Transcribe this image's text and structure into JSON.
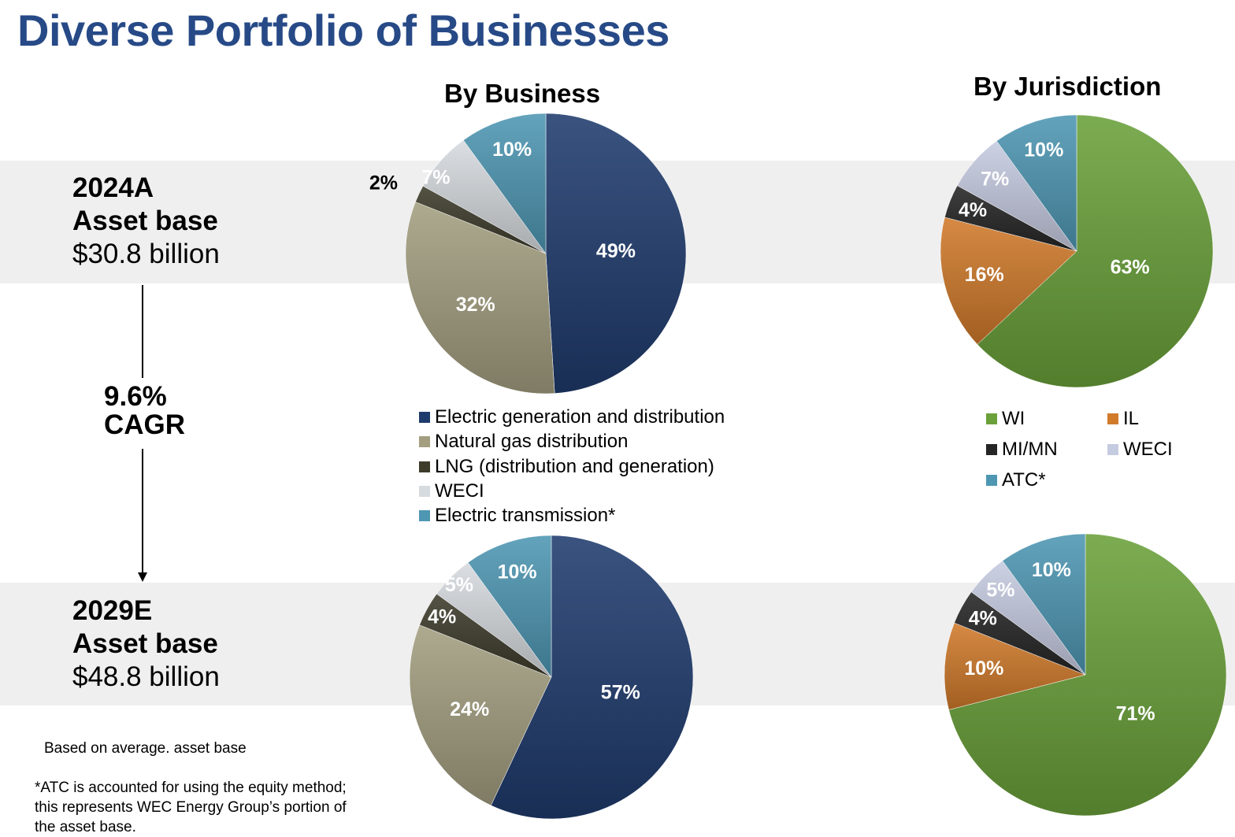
{
  "title": "Diverse Portfolio of Businesses",
  "columns": {
    "business": "By Business",
    "jurisdiction": "By Jurisdiction"
  },
  "rows": {
    "y2024": {
      "label": "2024A",
      "sub": "Asset base",
      "value": "$30.8 billion"
    },
    "y2029": {
      "label": "2029E",
      "sub": "Asset base",
      "value": "$48.8 billion"
    }
  },
  "cagr": {
    "value": "9.6%",
    "label": "CAGR"
  },
  "notes": {
    "basis": "Based on average. asset base",
    "atc_line1": "*ATC is accounted for using the equity method;",
    "atc_line2": "this represents WEC Energy Group’s portion of",
    "atc_line3": "the asset base."
  },
  "colors": {
    "title": "#274a87",
    "electric_gen": "#1f3b6d",
    "natural_gas": "#a39e80",
    "lng": "#3d3b2a",
    "weci_business": "#d6dbdf",
    "electric_transmission": "#4e97b3",
    "wi": "#6aa13a",
    "il": "#d07a2a",
    "mimn": "#252525",
    "weci_jurisdiction": "#c5cbe0",
    "atc": "#4e97b3"
  },
  "legends": {
    "business": [
      {
        "label": "Electric generation and distribution",
        "color": "#1f3b6d"
      },
      {
        "label": "Natural gas distribution",
        "color": "#a39e80"
      },
      {
        "label": "LNG (distribution and generation)",
        "color": "#3d3b2a"
      },
      {
        "label": "WECI",
        "color": "#d6dbdf"
      },
      {
        "label": "Electric transmission*",
        "color": "#4e97b3"
      }
    ],
    "jurisdiction": [
      {
        "label": "WI",
        "color": "#6aa13a"
      },
      {
        "label": "IL",
        "color": "#d07a2a"
      },
      {
        "label": "MI/MN",
        "color": "#252525"
      },
      {
        "label": "WECI",
        "color": "#c5cbe0"
      },
      {
        "label": "ATC*",
        "color": "#4e97b3"
      }
    ]
  },
  "chart_data": [
    {
      "type": "pie",
      "title": "By Business",
      "period": "2024A",
      "categories": [
        "Electric generation and distribution",
        "Natural gas distribution",
        "LNG (distribution and generation)",
        "WECI",
        "Electric transmission*"
      ],
      "values": [
        49,
        32,
        2,
        7,
        10
      ],
      "labels": [
        "49%",
        "32%",
        "2%",
        "7%",
        "10%"
      ],
      "colors": [
        "#1f3b6d",
        "#a39e80",
        "#3d3b2a",
        "#d6dbdf",
        "#4e97b3"
      ]
    },
    {
      "type": "pie",
      "title": "By Jurisdiction",
      "period": "2024A",
      "categories": [
        "WI",
        "IL",
        "MI/MN",
        "WECI",
        "ATC*"
      ],
      "values": [
        63,
        16,
        4,
        7,
        10
      ],
      "labels": [
        "63%",
        "16%",
        "4%",
        "7%",
        "10%"
      ],
      "colors": [
        "#6aa13a",
        "#d07a2a",
        "#252525",
        "#c5cbe0",
        "#4e97b3"
      ]
    },
    {
      "type": "pie",
      "title": "By Business",
      "period": "2029E",
      "categories": [
        "Electric generation and distribution",
        "Natural gas distribution",
        "LNG (distribution and generation)",
        "WECI",
        "Electric transmission*"
      ],
      "values": [
        57,
        24,
        4,
        5,
        10
      ],
      "labels": [
        "57%",
        "24%",
        "4%",
        "5%",
        "10%"
      ],
      "colors": [
        "#1f3b6d",
        "#a39e80",
        "#3d3b2a",
        "#d6dbdf",
        "#4e97b3"
      ]
    },
    {
      "type": "pie",
      "title": "By Jurisdiction",
      "period": "2029E",
      "categories": [
        "WI",
        "IL",
        "MI/MN",
        "WECI",
        "ATC*"
      ],
      "values": [
        71,
        10,
        4,
        5,
        10
      ],
      "labels": [
        "71%",
        "10%",
        "4%",
        "5%",
        "10%"
      ],
      "colors": [
        "#6aa13a",
        "#d07a2a",
        "#252525",
        "#c5cbe0",
        "#4e97b3"
      ]
    }
  ]
}
